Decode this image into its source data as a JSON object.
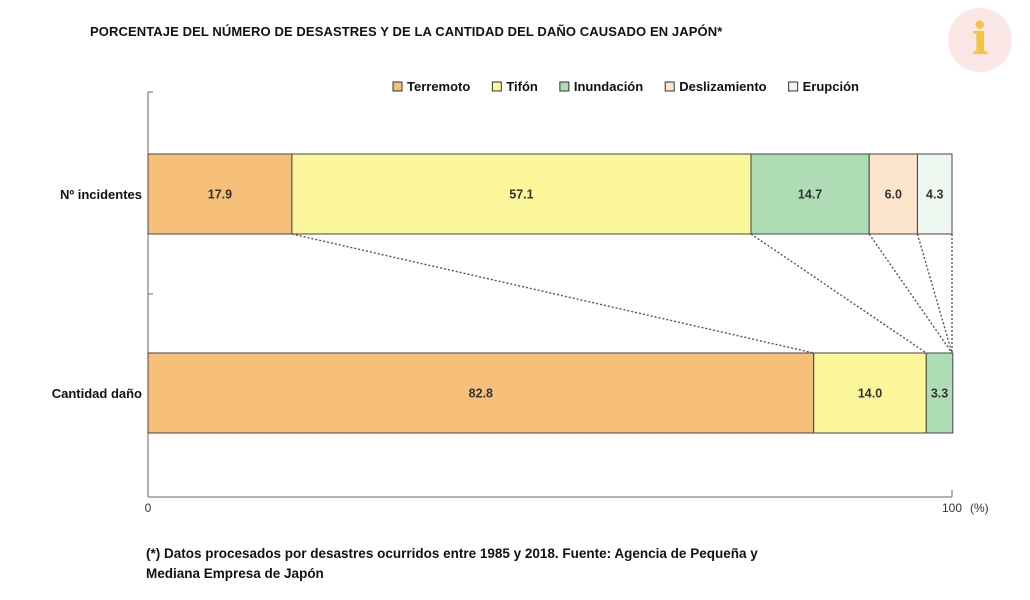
{
  "title": "PORCENTAJE DEL NÚMERO DE DESASTRES Y DE LA CANTIDAD DEL DAÑO CAUSADO EN JAPÓN*",
  "logo_letter": "i",
  "footnote_line1": "(*) Datos procesados por desastres ocurridos entre 1985 y 2018. Fuente: Agencia de Pequeña y",
  "footnote_line2": "Mediana Empresa de Japón",
  "colors": {
    "Terremoto": "#f7c07a",
    "Tifón": "#fbf79a",
    "Inundación": "#aedcb5",
    "Deslizamiento": "#fce5cc",
    "Erupción": "#eef7ef",
    "border": "#444444",
    "logo_bg": "#fbe6e6",
    "logo_fg": "#f2c44a"
  },
  "chart_data": {
    "type": "bar",
    "orientation": "horizontal",
    "stacked": true,
    "categories": [
      "Nº incidentes",
      "Cantidad daño"
    ],
    "series": [
      {
        "name": "Terremoto",
        "values": [
          17.9,
          82.8
        ],
        "labels": [
          "17.9",
          "82.8"
        ]
      },
      {
        "name": "Tifón",
        "values": [
          57.1,
          14.0
        ],
        "labels": [
          "57.1",
          "14.0"
        ]
      },
      {
        "name": "Inundación",
        "values": [
          14.7,
          3.3
        ],
        "labels": [
          "14.7",
          "3.3"
        ]
      },
      {
        "name": "Deslizamiento",
        "values": [
          6.0,
          0.0
        ],
        "labels": [
          "6.0",
          ""
        ]
      },
      {
        "name": "Erupción",
        "values": [
          4.3,
          0.0
        ],
        "labels": [
          "4.3",
          ""
        ]
      }
    ],
    "x_ticks": [
      "0",
      "100"
    ],
    "x_unit": "(%)",
    "xlim": [
      0,
      100
    ],
    "legend_position": "top-right",
    "grid": false,
    "connectors": "dotted"
  }
}
